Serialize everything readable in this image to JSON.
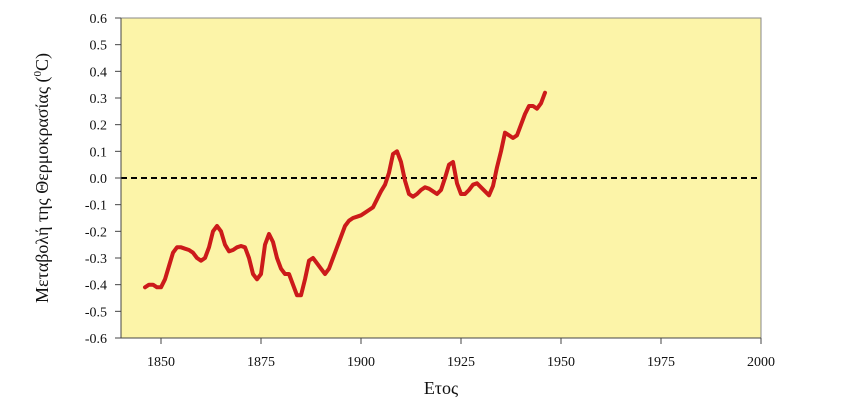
{
  "chart_data": {
    "type": "line",
    "title": "",
    "xlabel": "Ετος",
    "ylabel": {
      "prefix": "Μεταβολή της Θερμοκρασίας  (",
      "superscript": "0",
      "suffix": "C)"
    },
    "xlim": [
      1840,
      2000
    ],
    "ylim": [
      -0.6,
      0.6
    ],
    "x_ticks": [
      1850,
      1875,
      1900,
      1925,
      1950,
      1975,
      2000
    ],
    "y_ticks": [
      -0.6,
      -0.5,
      -0.4,
      -0.3,
      -0.2,
      -0.1,
      0.0,
      0.1,
      0.2,
      0.3,
      0.4,
      0.5,
      0.6
    ],
    "y_tick_labels": [
      "-0.6",
      "-0.5",
      "-0.4",
      "-0.3",
      "-0.2",
      "-0.1",
      "0.0",
      "0.1",
      "0.2",
      "0.3",
      "0.4",
      "0.5",
      "0.6"
    ],
    "grid": false,
    "background_color": "#fcf4a8",
    "reference_line": {
      "y": 0.0,
      "style": "dashed",
      "color": "#000000"
    },
    "series": [
      {
        "color": "#cc1a1a",
        "points": [
          [
            1846,
            -0.41
          ],
          [
            1847,
            -0.4
          ],
          [
            1848,
            -0.4
          ],
          [
            1849,
            -0.41
          ],
          [
            1850,
            -0.41
          ],
          [
            1851,
            -0.38
          ],
          [
            1852,
            -0.33
          ],
          [
            1853,
            -0.28
          ],
          [
            1854,
            -0.26
          ],
          [
            1855,
            -0.26
          ],
          [
            1856,
            -0.265
          ],
          [
            1857,
            -0.27
          ],
          [
            1858,
            -0.28
          ],
          [
            1859,
            -0.3
          ],
          [
            1860,
            -0.31
          ],
          [
            1861,
            -0.3
          ],
          [
            1862,
            -0.26
          ],
          [
            1863,
            -0.2
          ],
          [
            1864,
            -0.18
          ],
          [
            1865,
            -0.2
          ],
          [
            1866,
            -0.25
          ],
          [
            1867,
            -0.275
          ],
          [
            1868,
            -0.27
          ],
          [
            1869,
            -0.26
          ],
          [
            1870,
            -0.255
          ],
          [
            1871,
            -0.26
          ],
          [
            1872,
            -0.3
          ],
          [
            1873,
            -0.36
          ],
          [
            1874,
            -0.38
          ],
          [
            1875,
            -0.36
          ],
          [
            1876,
            -0.25
          ],
          [
            1877,
            -0.21
          ],
          [
            1878,
            -0.24
          ],
          [
            1879,
            -0.3
          ],
          [
            1880,
            -0.34
          ],
          [
            1881,
            -0.36
          ],
          [
            1882,
            -0.36
          ],
          [
            1883,
            -0.4
          ],
          [
            1884,
            -0.44
          ],
          [
            1885,
            -0.44
          ],
          [
            1886,
            -0.38
          ],
          [
            1887,
            -0.31
          ],
          [
            1888,
            -0.3
          ],
          [
            1889,
            -0.32
          ],
          [
            1890,
            -0.34
          ],
          [
            1891,
            -0.36
          ],
          [
            1892,
            -0.34
          ],
          [
            1893,
            -0.3
          ],
          [
            1894,
            -0.26
          ],
          [
            1895,
            -0.22
          ],
          [
            1896,
            -0.18
          ],
          [
            1897,
            -0.16
          ],
          [
            1898,
            -0.15
          ],
          [
            1899,
            -0.145
          ],
          [
            1900,
            -0.14
          ],
          [
            1901,
            -0.13
          ],
          [
            1902,
            -0.12
          ],
          [
            1903,
            -0.11
          ],
          [
            1904,
            -0.08
          ],
          [
            1905,
            -0.05
          ],
          [
            1906,
            -0.025
          ],
          [
            1907,
            0.02
          ],
          [
            1908,
            0.09
          ],
          [
            1909,
            0.1
          ],
          [
            1910,
            0.06
          ],
          [
            1911,
            -0.01
          ],
          [
            1912,
            -0.06
          ],
          [
            1913,
            -0.07
          ],
          [
            1914,
            -0.06
          ],
          [
            1915,
            -0.045
          ],
          [
            1916,
            -0.035
          ],
          [
            1917,
            -0.04
          ],
          [
            1918,
            -0.05
          ],
          [
            1919,
            -0.06
          ],
          [
            1920,
            -0.045
          ],
          [
            1921,
            0.0
          ],
          [
            1922,
            0.05
          ],
          [
            1923,
            0.06
          ],
          [
            1924,
            -0.02
          ],
          [
            1925,
            -0.06
          ],
          [
            1926,
            -0.06
          ],
          [
            1927,
            -0.045
          ],
          [
            1928,
            -0.025
          ],
          [
            1929,
            -0.02
          ],
          [
            1930,
            -0.035
          ],
          [
            1931,
            -0.05
          ],
          [
            1932,
            -0.065
          ],
          [
            1933,
            -0.03
          ],
          [
            1934,
            0.04
          ],
          [
            1935,
            0.1
          ],
          [
            1936,
            0.17
          ],
          [
            1937,
            0.16
          ],
          [
            1938,
            0.15
          ],
          [
            1939,
            0.16
          ],
          [
            1940,
            0.2
          ],
          [
            1941,
            0.24
          ],
          [
            1942,
            0.27
          ],
          [
            1943,
            0.27
          ],
          [
            1944,
            0.26
          ],
          [
            1945,
            0.28
          ],
          [
            1946,
            0.32
          ]
        ]
      }
    ]
  }
}
